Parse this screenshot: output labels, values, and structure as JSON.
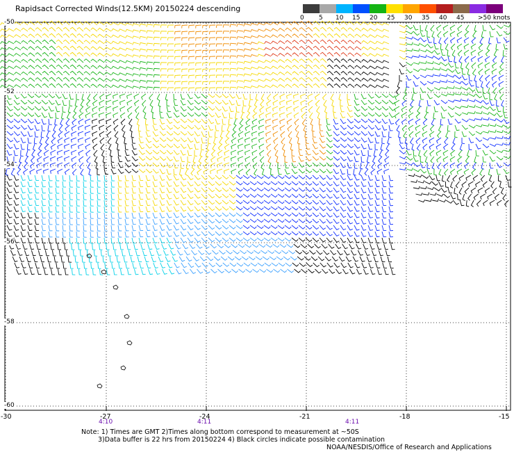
{
  "title": "Rapidsact Corrected Winds(12.5KM) 20150224 descending",
  "colorbar": {
    "labels": [
      "0",
      "5",
      "10",
      "15",
      "20",
      "25",
      "30",
      "35",
      "40",
      "45",
      ">50 knots"
    ],
    "colors": [
      "#3c3c3c",
      "#a8a8a8",
      "#00b4ff",
      "#0050ff",
      "#14b414",
      "#ffe000",
      "#ffa500",
      "#ff5000",
      "#b41e1e",
      "#8b6a4a",
      "#8a2be2",
      "#7b007b"
    ]
  },
  "map": {
    "lat_labels": [
      "-50",
      "-52",
      "-54",
      "-56",
      "-58",
      "-60"
    ],
    "lon_labels": [
      "-30",
      "-27",
      "-24",
      "-21",
      "-18",
      "-15"
    ],
    "time_labels": [
      "4:10",
      "4:11",
      "4:11"
    ],
    "swath_colors": {
      "black": "#000000",
      "cyan": "#00d0e8",
      "lightblue": "#3aa0ff",
      "blue": "#0a2aff",
      "green": "#18b418",
      "yellow": "#f5d800",
      "orange": "#f08c00",
      "red": "#e03a1a"
    }
  },
  "notes": {
    "line1": "Note: 1) Times are GMT 2)Times along bottom correspond to measurement at ~50S",
    "line2": "3)Data buffer is 22 hrs from 20150224 4) Black circles indicate possible contamination",
    "credit": "NOAA/NESDIS/Office of Research and Applications"
  }
}
